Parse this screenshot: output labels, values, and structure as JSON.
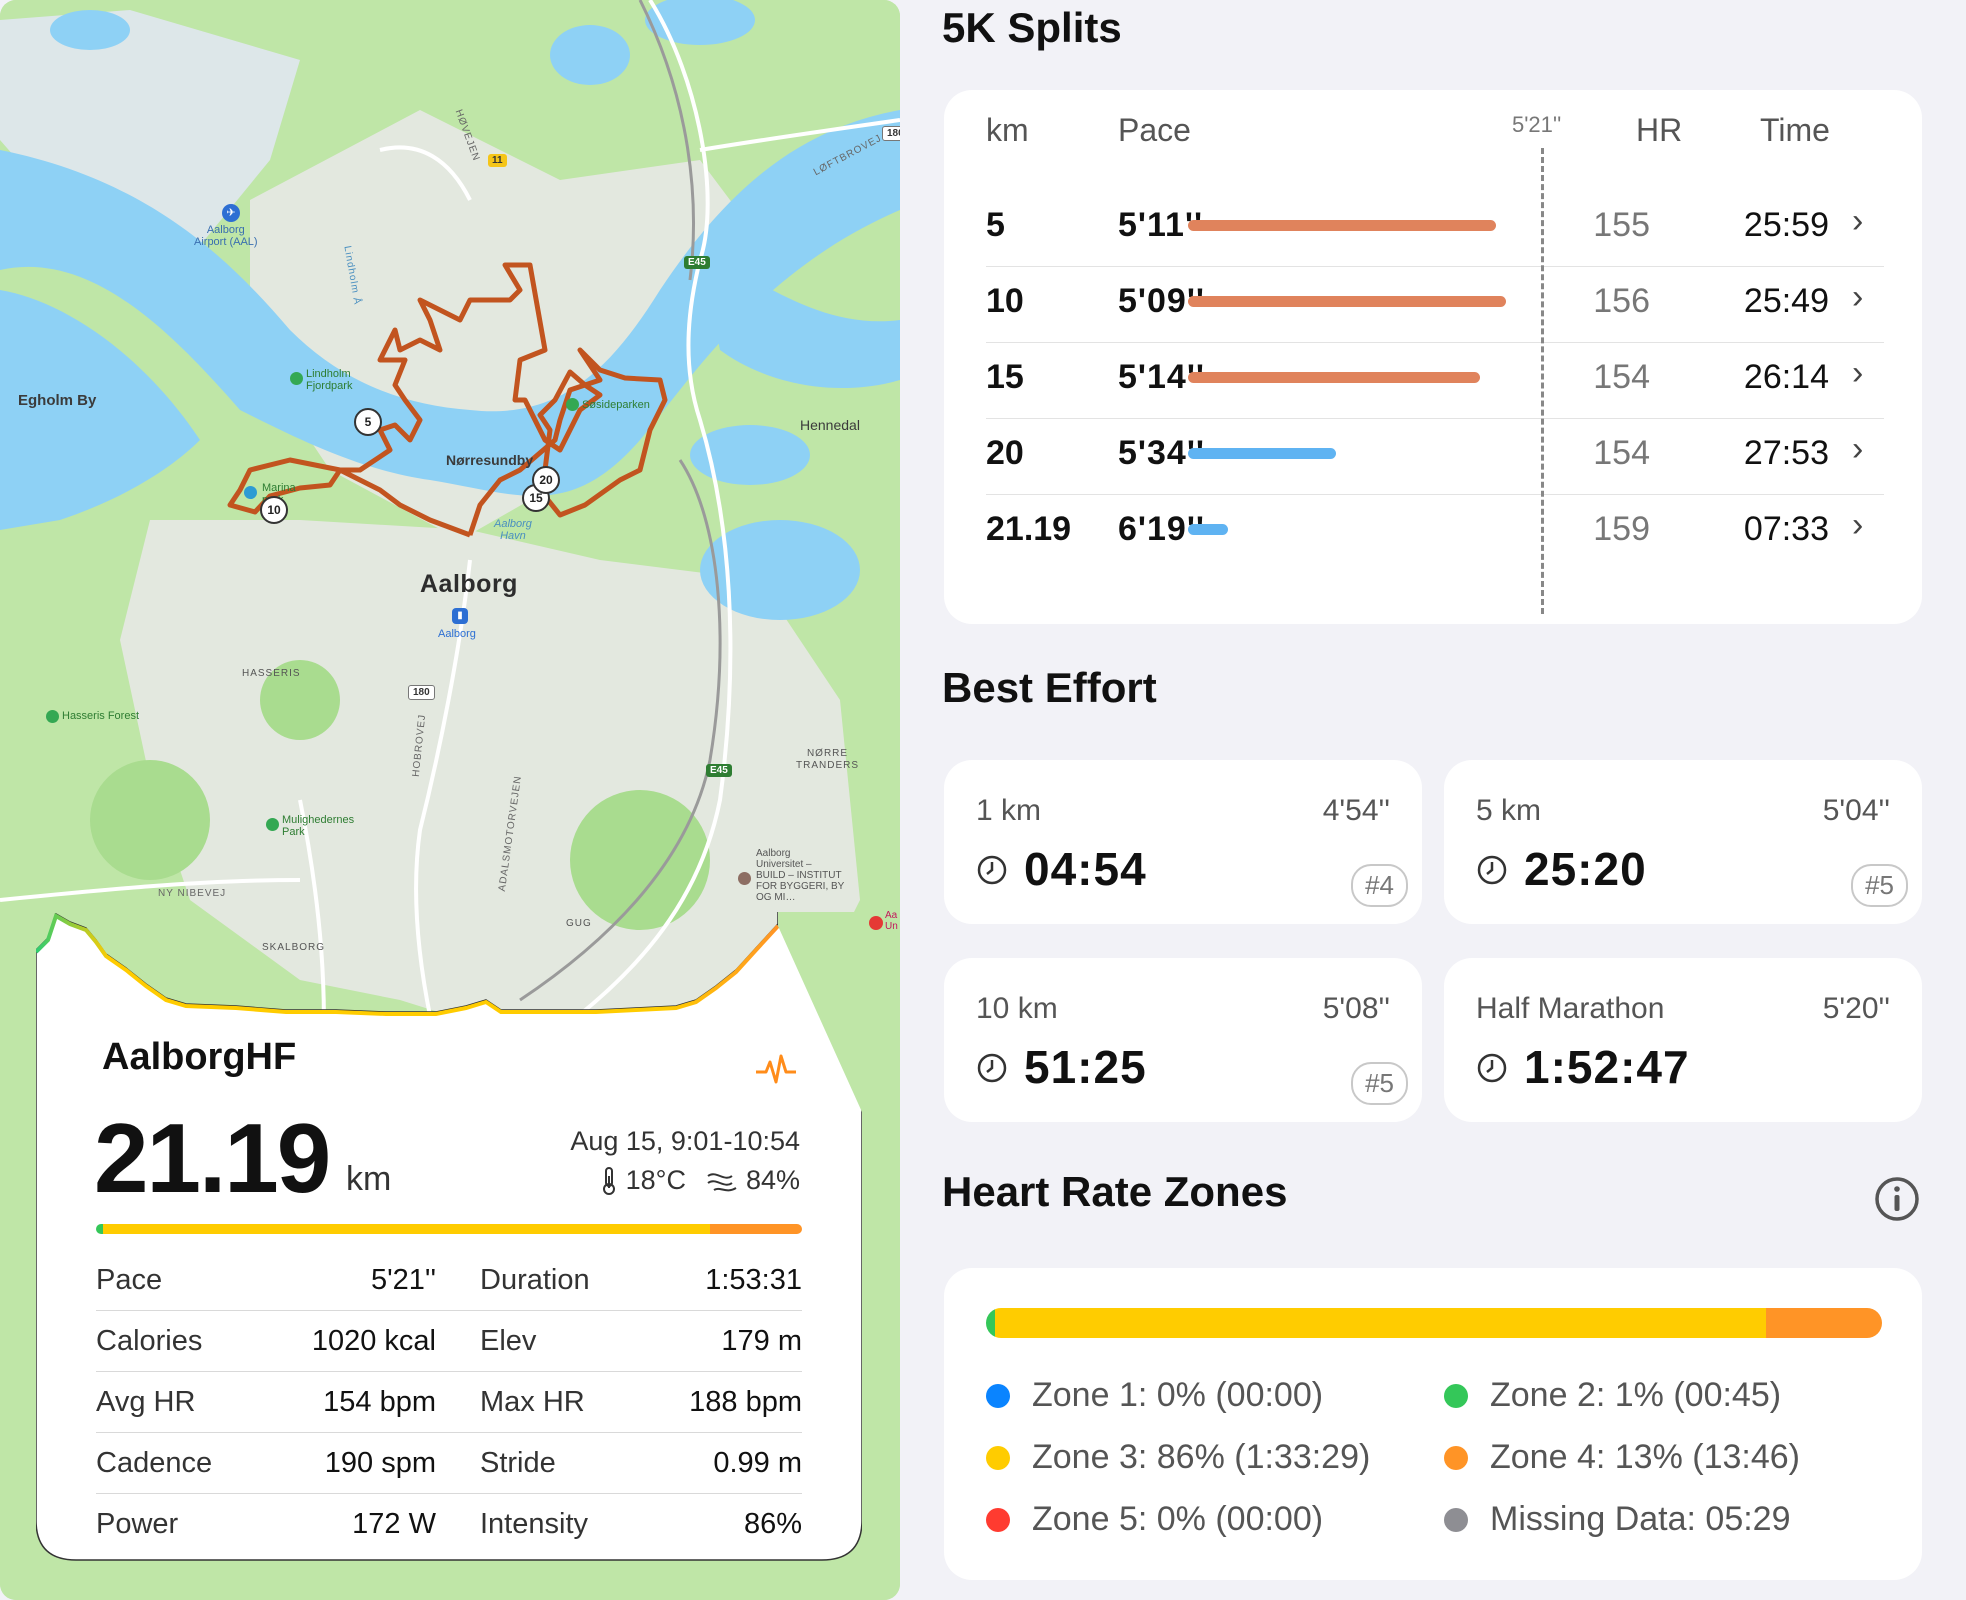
{
  "map": {
    "labels": {
      "aalborg": "Aalborg",
      "norresundby": "Nørresundby",
      "egholm": "Egholm By",
      "hennedal": "Hennedal",
      "hasseris": "HASSERIS",
      "skalborg": "SKALBORG",
      "gug": "GUG",
      "norre_tranders": "NØRRE\nTRANDERS",
      "airport": "Aalborg\nAirport (AAL)",
      "lindholm_fjordpark": "Lindholm\nFjordpark",
      "marina": "Marina\npark",
      "soesideparken": "Søsideparken",
      "aalborg_havn": "Aalborg\nHavn",
      "aalborg_station": "Aalborg",
      "hasseris_forest": "Hasseris Forest",
      "mulighedernes_park": "Mulighedernes\nPark",
      "university": "Aalborg\nUniversitet –\nBUILD – INSTITUT\nFOR BYGGERI, BY\nOG MI…",
      "hovejen": "HØVEJEN",
      "loftbrovej": "LØFTBROVEJ",
      "lindholm_a": "Lindholm Å",
      "hobrovej": "HOBROVEJ",
      "nibevej": "NY NIBEVEJ",
      "motorvej": "ADALSMOTORVEJEN",
      "road_11": "11",
      "road_180_top": "180",
      "road_180": "180",
      "e45_top": "E45",
      "e45_bottom": "E45",
      "edge_poi": "Aa\nUn"
    },
    "km_markers": [
      "5",
      "10",
      "15",
      "20"
    ],
    "colors": {
      "route": "#c2541f",
      "water": "#8ed1f5",
      "land": "#bfe6a7"
    }
  },
  "summary": {
    "name": "AalborgHF",
    "distance": "21.19",
    "distance_unit": "km",
    "date_range": "Aug 15, 9:01-10:54",
    "temperature": "18°C",
    "humidity": "84%",
    "stats": [
      {
        "left_label": "Pace",
        "left_value": "5'21''",
        "right_label": "Duration",
        "right_value": "1:53:31"
      },
      {
        "left_label": "Calories",
        "left_value": "1020 kcal",
        "right_label": "Elev",
        "right_value": "179 m"
      },
      {
        "left_label": "Avg HR",
        "left_value": "154 bpm",
        "right_label": "Max HR",
        "right_value": "188 bpm"
      },
      {
        "left_label": "Cadence",
        "left_value": "190 spm",
        "right_label": "Stride",
        "right_value": "0.99 m"
      },
      {
        "left_label": "Power",
        "left_value": "172 W",
        "right_label": "Intensity",
        "right_value": "86%"
      }
    ]
  },
  "splits": {
    "title": "5K Splits",
    "headers": {
      "km": "km",
      "pace": "Pace",
      "hr": "HR",
      "time": "Time"
    },
    "avg_pace_label": "5'21''",
    "rows": [
      {
        "km": "5",
        "pace": "5'11''",
        "hr": "155",
        "time": "25:59",
        "pace_sec": 311,
        "color": "#e0835c"
      },
      {
        "km": "10",
        "pace": "5'09''",
        "hr": "156",
        "time": "25:49",
        "pace_sec": 309,
        "color": "#e0835c"
      },
      {
        "km": "15",
        "pace": "5'14''",
        "hr": "154",
        "time": "26:14",
        "pace_sec": 314,
        "color": "#e0835c"
      },
      {
        "km": "20",
        "pace": "5'34''",
        "hr": "154",
        "time": "27:53",
        "pace_sec": 334,
        "color": "#5fb3f2"
      },
      {
        "km": "21.19",
        "pace": "6'19''",
        "hr": "159",
        "time": "07:33",
        "pace_sec": 379,
        "color": "#5fb3f2"
      }
    ],
    "chevron": "›"
  },
  "best_effort": {
    "title": "Best Effort",
    "items": [
      {
        "distance": "1 km",
        "pace": "4'54''",
        "time": "04:54",
        "rank": "#4"
      },
      {
        "distance": "5 km",
        "pace": "5'04''",
        "time": "25:20",
        "rank": "#5"
      },
      {
        "distance": "10 km",
        "pace": "5'08''",
        "time": "51:25",
        "rank": "#5"
      },
      {
        "distance": "Half Marathon",
        "pace": "5'20''",
        "time": "1:52:47",
        "rank": ""
      }
    ]
  },
  "hr_zones": {
    "title": "Heart Rate Zones",
    "bar": [
      {
        "zone": "Zone 2",
        "percent": 1,
        "color": "#34c759"
      },
      {
        "zone": "Zone 3",
        "percent": 86,
        "color": "#ffcc00"
      },
      {
        "zone": "Zone 4",
        "percent": 13,
        "color": "#ff9426"
      }
    ],
    "legend": [
      {
        "label": "Zone 1: 0% (00:00)",
        "color": "#0a84ff"
      },
      {
        "label": "Zone 2: 1% (00:45)",
        "color": "#34c759"
      },
      {
        "label": "Zone 3: 86% (1:33:29)",
        "color": "#ffcc00"
      },
      {
        "label": "Zone 4: 13% (13:46)",
        "color": "#ff9426"
      },
      {
        "label": "Zone 5: 0% (00:00)",
        "color": "#ff3b30"
      },
      {
        "label": "Missing Data: 05:29",
        "color": "#8e8e93"
      }
    ]
  }
}
